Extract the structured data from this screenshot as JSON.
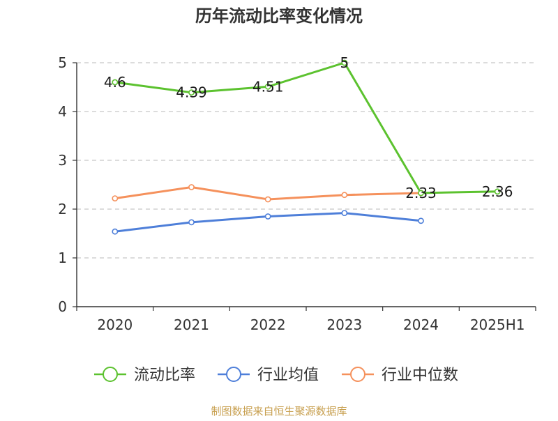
{
  "chart_data": {
    "type": "line",
    "title": "历年流动比率变化情况",
    "categories": [
      "2020",
      "2021",
      "2022",
      "2023",
      "2024",
      "2025H1"
    ],
    "ylim": [
      0,
      5
    ],
    "yticks": [
      0,
      1,
      2,
      3,
      4,
      5
    ],
    "grid": true,
    "legend_position": "bottom",
    "series": [
      {
        "name": "流动比率",
        "color": "#5cc22f",
        "values": [
          4.6,
          4.39,
          4.51,
          5,
          2.33,
          2.36
        ],
        "labels": [
          "4.6",
          "4.39",
          "4.51",
          "5",
          "2.33",
          "2.36"
        ]
      },
      {
        "name": "行业均值",
        "color": "#4e7fd9",
        "values": [
          1.54,
          1.73,
          1.85,
          1.92,
          1.76,
          null
        ]
      },
      {
        "name": "行业中位数",
        "color": "#f5915c",
        "values": [
          2.22,
          2.45,
          2.2,
          2.29,
          2.33,
          null
        ]
      }
    ],
    "source": "制图数据来自恒生聚源数据库"
  }
}
